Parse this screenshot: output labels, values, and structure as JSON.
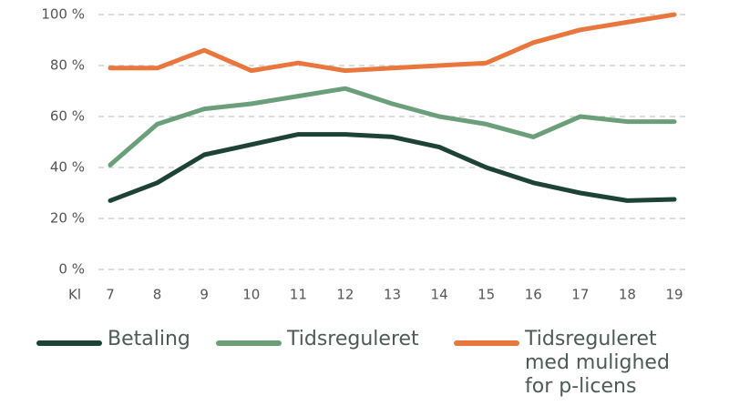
{
  "chart_data": {
    "type": "line",
    "x_label": "Kl",
    "x": [
      7,
      8,
      9,
      10,
      11,
      12,
      13,
      14,
      15,
      16,
      17,
      18,
      19
    ],
    "xlim": [
      7,
      19
    ],
    "xticks": [
      7,
      8,
      9,
      10,
      11,
      12,
      13,
      14,
      15,
      16,
      17,
      18,
      19
    ],
    "ylim": [
      0,
      100
    ],
    "yticks": [
      {
        "value": 0,
        "label": "0 %"
      },
      {
        "value": 20,
        "label": "20 %"
      },
      {
        "value": 40,
        "label": "40 %"
      },
      {
        "value": 60,
        "label": "60 %"
      },
      {
        "value": 80,
        "label": "80 %"
      },
      {
        "value": 100,
        "label": "100 %"
      }
    ],
    "grid": true,
    "series": [
      {
        "name": "Betaling",
        "color": "#1d4236",
        "values": [
          27,
          34,
          45,
          49,
          53,
          53,
          52,
          48,
          40,
          34,
          30,
          27,
          27.5
        ]
      },
      {
        "name": "Tidsreguleret",
        "color": "#6b9f7a",
        "values": [
          41,
          57,
          63,
          65,
          68,
          71,
          65,
          60,
          57,
          52,
          60,
          58,
          58
        ]
      },
      {
        "name": "Tidsreguleret med mulighed for p-licens",
        "color": "#e9773d",
        "values": [
          79,
          79,
          86,
          78,
          81,
          78,
          79,
          80,
          81,
          89,
          94,
          97,
          100
        ]
      }
    ]
  }
}
